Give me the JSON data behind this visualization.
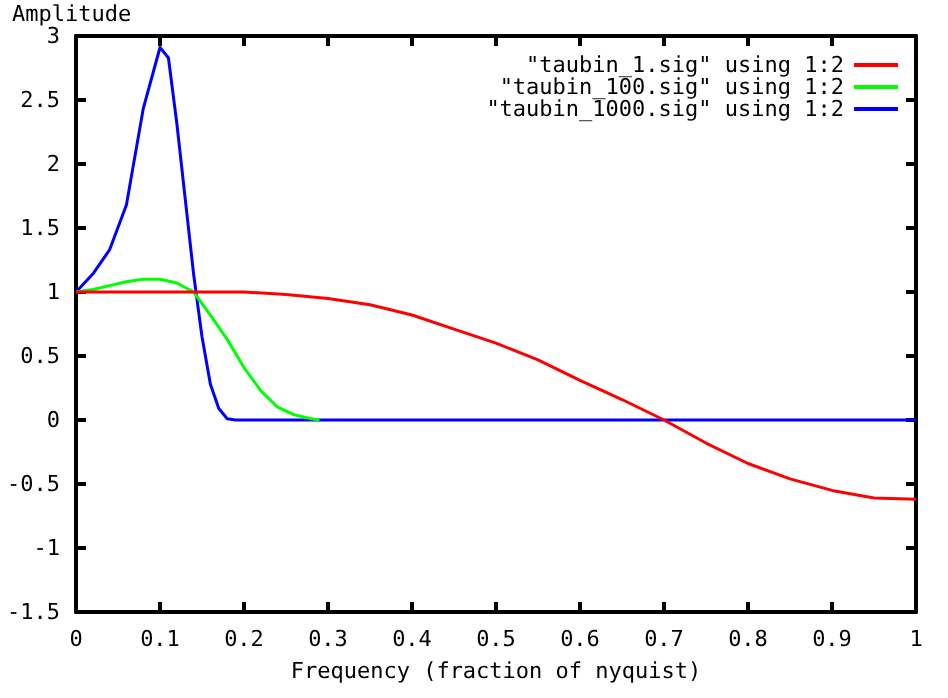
{
  "chart_data": {
    "type": "line",
    "xlabel": "Frequency (fraction of nyquist)",
    "ylabel": "Amplitude",
    "xlim": [
      0,
      1
    ],
    "ylim": [
      -1.5,
      3
    ],
    "xticks": [
      0,
      0.1,
      0.2,
      0.3,
      0.4,
      0.5,
      0.6,
      0.7,
      0.8,
      0.9,
      1
    ],
    "yticks": [
      -1.5,
      -1,
      -0.5,
      0,
      0.5,
      1,
      1.5,
      2,
      2.5,
      3
    ],
    "grid": false,
    "legend": "top right",
    "marker": "none",
    "line_style": "solid",
    "series": [
      {
        "name": "\"taubin_1.sig\" using 1:2",
        "color": "#ff0000",
        "x": [
          0,
          0.1,
          0.2,
          0.25,
          0.3,
          0.35,
          0.4,
          0.45,
          0.5,
          0.55,
          0.6,
          0.65,
          0.7,
          0.75,
          0.8,
          0.85,
          0.9,
          0.95,
          1
        ],
        "values": [
          1,
          1,
          1,
          0.98,
          0.95,
          0.9,
          0.82,
          0.71,
          0.6,
          0.47,
          0.31,
          0.16,
          0,
          -0.18,
          -0.34,
          -0.46,
          -0.55,
          -0.61,
          -0.62
        ]
      },
      {
        "name": "\"taubin_100.sig\" using 1:2",
        "color": "#00ff00",
        "x": [
          0,
          0.02,
          0.04,
          0.06,
          0.08,
          0.1,
          0.12,
          0.14,
          0.16,
          0.18,
          0.2,
          0.22,
          0.24,
          0.26,
          0.28,
          0.29
        ],
        "values": [
          1,
          1.02,
          1.05,
          1.08,
          1.1,
          1.1,
          1.07,
          1,
          0.82,
          0.63,
          0.41,
          0.23,
          0.1,
          0.04,
          0.01,
          0
        ]
      },
      {
        "name": "\"taubin_1000.sig\" using 1:2",
        "color": "#0000ff",
        "x": [
          0,
          0.02,
          0.04,
          0.06,
          0.08,
          0.1,
          0.11,
          0.12,
          0.13,
          0.14,
          0.15,
          0.16,
          0.17,
          0.18,
          0.19,
          1
        ],
        "values": [
          1,
          1.14,
          1.33,
          1.68,
          2.43,
          2.91,
          2.83,
          2.32,
          1.73,
          1.14,
          0.65,
          0.28,
          0.09,
          0.01,
          0,
          0
        ]
      }
    ]
  }
}
